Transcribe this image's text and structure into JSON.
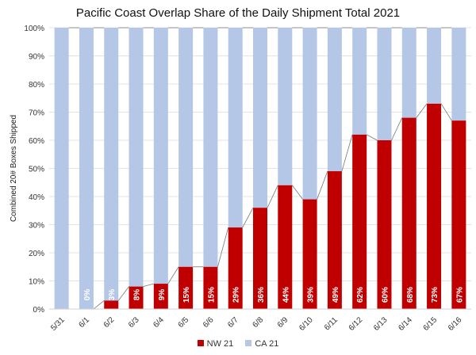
{
  "chart_data": {
    "type": "bar",
    "stacked": "percent",
    "title": "Pacific Coast Overlap Share of the Daily Shipment Total 2021",
    "xlabel": "",
    "ylabel": "Combined 20# Boxes Shipped",
    "ylim": [
      0,
      100
    ],
    "yticks": [
      "0%",
      "10%",
      "20%",
      "30%",
      "40%",
      "50%",
      "60%",
      "70%",
      "80%",
      "90%",
      "100%"
    ],
    "categories": [
      "5/31",
      "6/1",
      "6/2",
      "6/3",
      "6/4",
      "6/5",
      "6/6",
      "6/7",
      "6/8",
      "6/9",
      "6/10",
      "6/11",
      "6/12",
      "6/13",
      "6/14",
      "6/15",
      "6/16"
    ],
    "series": [
      {
        "name": "NW 21",
        "color": "#c00000",
        "values": [
          0,
          0,
          3,
          8,
          9,
          15,
          15,
          29,
          36,
          44,
          39,
          49,
          62,
          60,
          68,
          73,
          67
        ],
        "labels": [
          "",
          "0%",
          "3%",
          "8%",
          "9%",
          "15%",
          "15%",
          "29%",
          "36%",
          "44%",
          "39%",
          "49%",
          "62%",
          "60%",
          "68%",
          "73%",
          "67%"
        ]
      },
      {
        "name": "CA 21",
        "color": "#b4c7e7",
        "values": [
          100,
          100,
          97,
          92,
          91,
          85,
          85,
          71,
          64,
          56,
          61,
          51,
          38,
          40,
          32,
          27,
          33
        ]
      }
    ],
    "legend": "bottom",
    "grid": true
  }
}
